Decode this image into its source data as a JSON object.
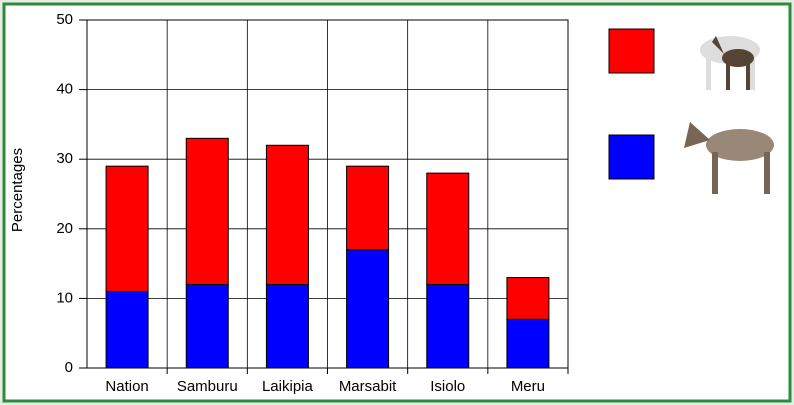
{
  "chart_data": {
    "type": "stacked_bar",
    "y_label": "Percentages",
    "categories": [
      "Nation",
      "Samburu",
      "Laikipia",
      "Marsabit",
      "Isiolo",
      "Meru"
    ],
    "series": [
      {
        "color": "#0000ff",
        "values": [
          11,
          12,
          12,
          17,
          12,
          7
        ]
      },
      {
        "color": "#ff0000",
        "values": [
          18,
          21,
          20,
          12,
          16,
          6
        ]
      }
    ],
    "ylim": [
      0,
      50
    ],
    "yticks": [
      0,
      10,
      20,
      30,
      40,
      50
    ],
    "grid": true
  }
}
